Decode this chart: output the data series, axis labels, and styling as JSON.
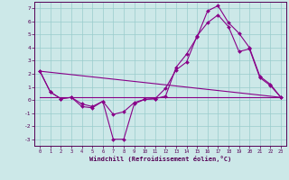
{
  "xlabel": "Windchill (Refroidissement éolien,°C)",
  "bg_color": "#cce8e8",
  "line_color": "#880088",
  "grid_color": "#99cccc",
  "xlim": [
    -0.5,
    23.5
  ],
  "ylim": [
    -3.5,
    7.5
  ],
  "xticks": [
    0,
    1,
    2,
    3,
    4,
    5,
    6,
    7,
    8,
    9,
    10,
    11,
    12,
    13,
    14,
    15,
    16,
    17,
    18,
    19,
    20,
    21,
    22,
    23
  ],
  "yticks": [
    -3,
    -2,
    -1,
    0,
    1,
    2,
    3,
    4,
    5,
    6,
    7
  ],
  "line1_x": [
    0,
    1,
    2,
    3,
    4,
    5,
    6,
    7,
    8,
    9,
    10,
    11,
    12,
    13,
    14,
    15,
    16,
    17,
    18,
    19,
    20,
    21,
    22,
    23
  ],
  "line1_y": [
    2.2,
    0.6,
    0.1,
    0.2,
    -0.3,
    -0.5,
    -0.1,
    -3.0,
    -3.0,
    -0.3,
    0.05,
    0.1,
    0.3,
    2.5,
    3.5,
    4.8,
    6.8,
    7.2,
    5.9,
    5.1,
    4.0,
    1.8,
    1.2,
    0.2
  ],
  "line2_x": [
    0,
    1,
    2,
    3,
    4,
    5,
    6,
    7,
    8,
    9,
    10,
    11,
    12,
    13,
    14,
    15,
    16,
    17,
    18,
    19,
    20,
    21,
    22,
    23
  ],
  "line2_y": [
    2.2,
    0.6,
    0.1,
    0.2,
    -0.5,
    -0.6,
    -0.1,
    -1.1,
    -0.9,
    -0.2,
    0.05,
    0.1,
    0.9,
    2.3,
    2.9,
    4.9,
    5.9,
    6.5,
    5.6,
    3.7,
    3.9,
    1.7,
    1.1,
    0.2
  ],
  "line3_x": [
    0,
    23
  ],
  "line3_y": [
    2.2,
    0.2
  ],
  "line4_x": [
    0,
    23
  ],
  "line4_y": [
    0.2,
    0.2
  ]
}
